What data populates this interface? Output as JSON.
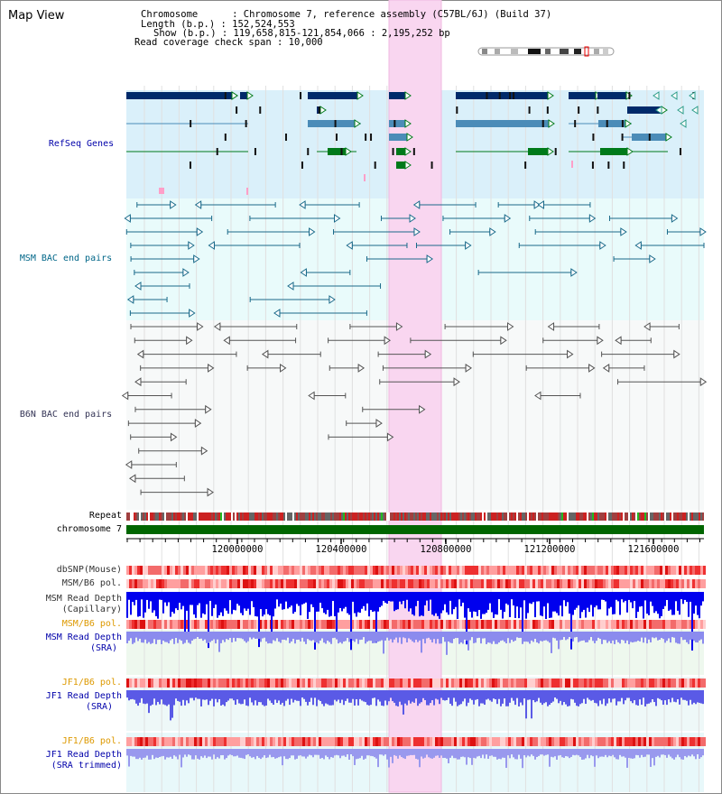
{
  "view_title": "Map View",
  "info": {
    "chromosome": "Chromosome      : Chromosome 7, reference assembly (C57BL/6J) (Build 37)",
    "length": "Length (b.p.) : 152,524,553",
    "show": "Show (b.p.) : 119,658,815-121,854,066 : 2,195,252 bp",
    "coverage": "Read coverage check span : 10,000"
  },
  "tracks": {
    "refseq": "RefSeq Genes",
    "msm_bac": "MSM BAC end pairs",
    "b6n_bac": "B6N BAC end pairs",
    "repeat": "Repeat",
    "chromosome": "chromosome 7",
    "dbsnp": "dbSNP(Mouse)",
    "msm_pol_1": "MSM/B6 pol.",
    "msm_depth_cap_1": "MSM Read Depth",
    "msm_depth_cap_2": "(Capillary)",
    "msm_pol_2": "MSM/B6 pol.",
    "msm_depth_sra_1": "MSM Read Depth",
    "msm_depth_sra_2": "(SRA)",
    "jf1_pol_1": "JF1/B6 pol.",
    "jf1_depth_sra_1": "JF1 Read Depth",
    "jf1_depth_sra_2": "(SRA)",
    "jf1_pol_2": "JF1/B6 pol.",
    "jf1_depth_trim_1": "JF1 Read Depth",
    "jf1_depth_trim_2": "(SRA trimmed)"
  },
  "ruler": {
    "ticks": [
      "120000000",
      "120400000",
      "120800000",
      "121200000",
      "121600000"
    ]
  },
  "colors": {
    "refseq_label": "#0000aa",
    "msm_bac_label": "#006688",
    "b6n_bac_label": "#333355",
    "orange_label": "#dd9900",
    "blue_label": "#0000aa",
    "highlight": "#f9d6f0",
    "chrom_bar": "#006600",
    "dark_blue_gene": "#002a6a",
    "mid_blue_gene": "#4b8cb8",
    "green_gene": "#007a1a",
    "depth_blue": "#0000ee",
    "depth_light_blue": "#7777ee"
  }
}
